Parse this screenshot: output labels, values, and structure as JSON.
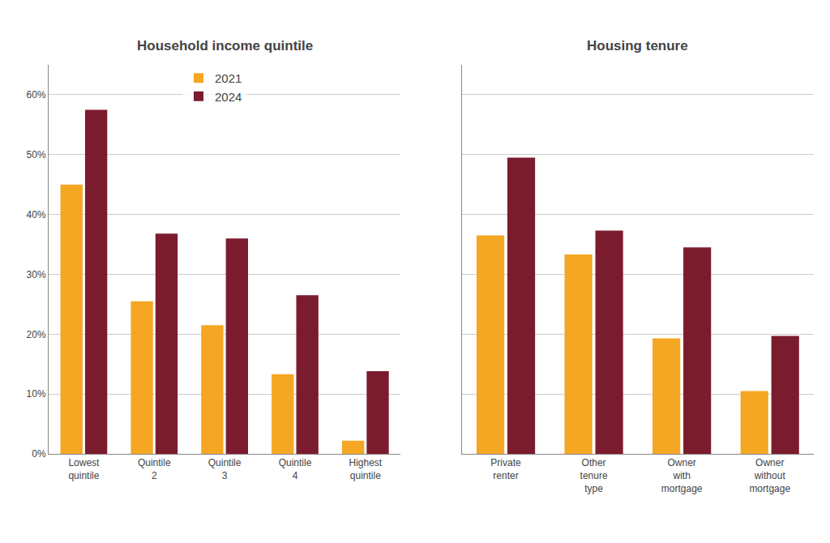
{
  "chart_data": [
    {
      "type": "bar",
      "title": "Household income quintile",
      "categories": [
        "Lowest\nquintile",
        "Quintile\n2",
        "Quintile\n3",
        "Quintile\n4",
        "Highest\nquintile"
      ],
      "series": [
        {
          "name": "2021",
          "color": "#F5A623",
          "values": [
            0.45,
            0.255,
            0.215,
            0.133,
            0.022
          ]
        },
        {
          "name": "2024",
          "color": "#7B1C2E",
          "values": [
            0.575,
            0.368,
            0.36,
            0.265,
            0.138
          ]
        }
      ],
      "ylim": [
        0,
        0.65
      ],
      "yticks": [
        {
          "value": 0.0,
          "label": "0%"
        },
        {
          "value": 0.1,
          "label": "10%"
        },
        {
          "value": 0.2,
          "label": "20%"
        },
        {
          "value": 0.3,
          "label": "30%"
        },
        {
          "value": 0.4,
          "label": "40%"
        },
        {
          "value": 0.5,
          "label": "50%"
        },
        {
          "value": 0.6,
          "label": "60%"
        }
      ],
      "grid": true,
      "legend": "upper center"
    },
    {
      "type": "bar",
      "title": "Housing tenure",
      "categories": [
        "Private\nrenter",
        "Other\ntenure\ntype",
        "Owner\nwith\nmortgage",
        "Owner\nwithout\nmortgage"
      ],
      "series": [
        {
          "name": "2021",
          "color": "#F5A623",
          "values": [
            0.365,
            0.333,
            0.193,
            0.105
          ]
        },
        {
          "name": "2024",
          "color": "#7B1C2E",
          "values": [
            0.495,
            0.373,
            0.345,
            0.197
          ]
        }
      ],
      "ylim": [
        0,
        0.65
      ],
      "yticks": [
        0.0,
        0.1,
        0.2,
        0.3,
        0.4,
        0.5,
        0.6
      ],
      "grid": true,
      "tick_labels": "x"
    }
  ]
}
